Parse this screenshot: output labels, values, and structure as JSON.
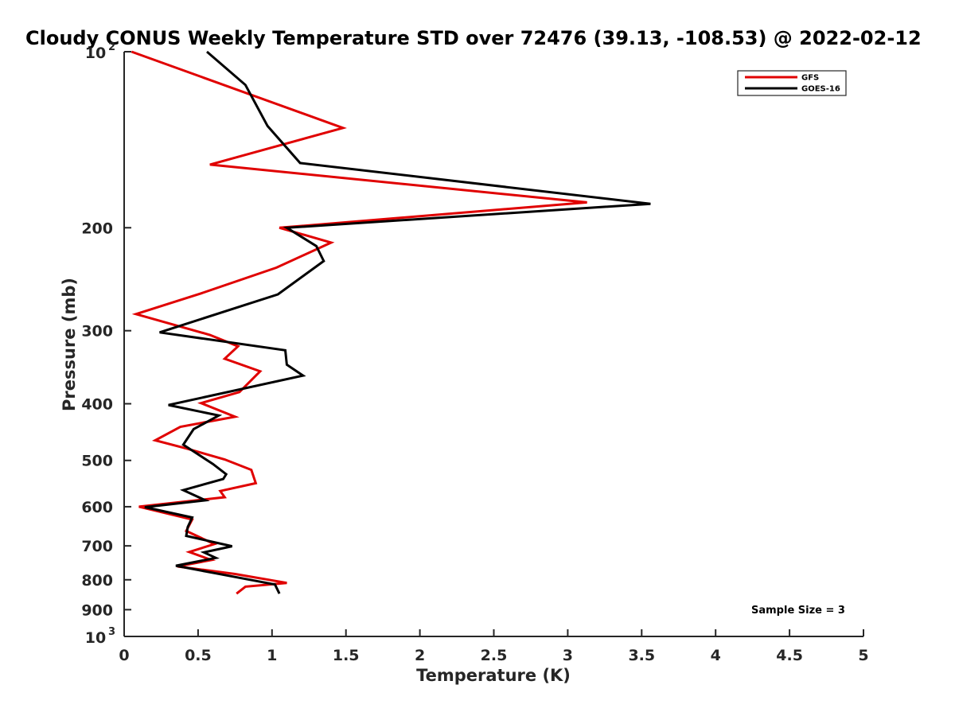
{
  "chart_data": {
    "type": "line",
    "title": "Cloudy CONUS Weekly Temperature STD over 72476 (39.13, -108.53) @ 2022-02-12",
    "xlabel": "Temperature (K)",
    "ylabel": "Pressure (mb)",
    "xlim": [
      0,
      5
    ],
    "ylim": [
      100,
      1000
    ],
    "y_scale": "log",
    "y_reversed": true,
    "x_ticks": [
      {
        "value": 0,
        "label": "0"
      },
      {
        "value": 0.5,
        "label": "0.5"
      },
      {
        "value": 1,
        "label": "1"
      },
      {
        "value": 1.5,
        "label": "1.5"
      },
      {
        "value": 2,
        "label": "2"
      },
      {
        "value": 2.5,
        "label": "2.5"
      },
      {
        "value": 3,
        "label": "3"
      },
      {
        "value": 3.5,
        "label": "3.5"
      },
      {
        "value": 4,
        "label": "4"
      },
      {
        "value": 4.5,
        "label": "4.5"
      },
      {
        "value": 5,
        "label": "5"
      }
    ],
    "y_ticks": [
      {
        "value": 100,
        "base": "10",
        "exp": "2"
      },
      {
        "value": 200,
        "label": "200"
      },
      {
        "value": 300,
        "label": "300"
      },
      {
        "value": 400,
        "label": "400"
      },
      {
        "value": 500,
        "label": "500"
      },
      {
        "value": 600,
        "label": "600"
      },
      {
        "value": 700,
        "label": "700"
      },
      {
        "value": 800,
        "label": "800"
      },
      {
        "value": 900,
        "label": "900"
      },
      {
        "value": 1000,
        "base": "10",
        "exp": "3"
      }
    ],
    "grid": false,
    "legend_position": "top-right",
    "annotation": "Sample Size = 3",
    "series": [
      {
        "name": "GFS",
        "color": "#e00000",
        "points": [
          {
            "x": 0.05,
            "p": 100
          },
          {
            "x": 1.48,
            "p": 135
          },
          {
            "x": 0.58,
            "p": 156
          },
          {
            "x": 3.13,
            "p": 181
          },
          {
            "x": 1.05,
            "p": 200
          },
          {
            "x": 1.4,
            "p": 212
          },
          {
            "x": 1.03,
            "p": 234
          },
          {
            "x": 0.52,
            "p": 259
          },
          {
            "x": 0.08,
            "p": 281
          },
          {
            "x": 0.58,
            "p": 305
          },
          {
            "x": 0.77,
            "p": 319
          },
          {
            "x": 0.68,
            "p": 335
          },
          {
            "x": 0.92,
            "p": 352
          },
          {
            "x": 0.78,
            "p": 382
          },
          {
            "x": 0.52,
            "p": 399
          },
          {
            "x": 0.75,
            "p": 421
          },
          {
            "x": 0.38,
            "p": 438
          },
          {
            "x": 0.21,
            "p": 462
          },
          {
            "x": 0.42,
            "p": 477
          },
          {
            "x": 0.68,
            "p": 498
          },
          {
            "x": 0.86,
            "p": 519
          },
          {
            "x": 0.89,
            "p": 547
          },
          {
            "x": 0.65,
            "p": 564
          },
          {
            "x": 0.68,
            "p": 578
          },
          {
            "x": 0.1,
            "p": 600
          },
          {
            "x": 0.46,
            "p": 631
          },
          {
            "x": 0.42,
            "p": 660
          },
          {
            "x": 0.61,
            "p": 695
          },
          {
            "x": 0.44,
            "p": 717
          },
          {
            "x": 0.59,
            "p": 740
          },
          {
            "x": 0.36,
            "p": 759
          },
          {
            "x": 0.75,
            "p": 782
          },
          {
            "x": 1.1,
            "p": 810
          },
          {
            "x": 0.82,
            "p": 822
          },
          {
            "x": 0.76,
            "p": 845
          }
        ]
      },
      {
        "name": "GOES-16",
        "color": "#000000",
        "points": [
          {
            "x": 0.56,
            "p": 100
          },
          {
            "x": 0.82,
            "p": 114
          },
          {
            "x": 0.97,
            "p": 134
          },
          {
            "x": 1.19,
            "p": 155
          },
          {
            "x": 3.56,
            "p": 182
          },
          {
            "x": 1.1,
            "p": 200
          },
          {
            "x": 1.3,
            "p": 215
          },
          {
            "x": 1.35,
            "p": 228
          },
          {
            "x": 1.04,
            "p": 260
          },
          {
            "x": 0.24,
            "p": 302
          },
          {
            "x": 1.09,
            "p": 324
          },
          {
            "x": 1.1,
            "p": 343
          },
          {
            "x": 1.21,
            "p": 358
          },
          {
            "x": 0.3,
            "p": 402
          },
          {
            "x": 0.64,
            "p": 419
          },
          {
            "x": 0.47,
            "p": 442
          },
          {
            "x": 0.4,
            "p": 470
          },
          {
            "x": 0.6,
            "p": 507
          },
          {
            "x": 0.69,
            "p": 528
          },
          {
            "x": 0.67,
            "p": 538
          },
          {
            "x": 0.4,
            "p": 562
          },
          {
            "x": 0.55,
            "p": 585
          },
          {
            "x": 0.14,
            "p": 601
          },
          {
            "x": 0.46,
            "p": 626
          },
          {
            "x": 0.43,
            "p": 650
          },
          {
            "x": 0.42,
            "p": 673
          },
          {
            "x": 0.73,
            "p": 701
          },
          {
            "x": 0.54,
            "p": 718
          },
          {
            "x": 0.62,
            "p": 734
          },
          {
            "x": 0.35,
            "p": 757
          },
          {
            "x": 0.62,
            "p": 780
          },
          {
            "x": 1.02,
            "p": 815
          },
          {
            "x": 1.05,
            "p": 845
          }
        ]
      }
    ]
  }
}
